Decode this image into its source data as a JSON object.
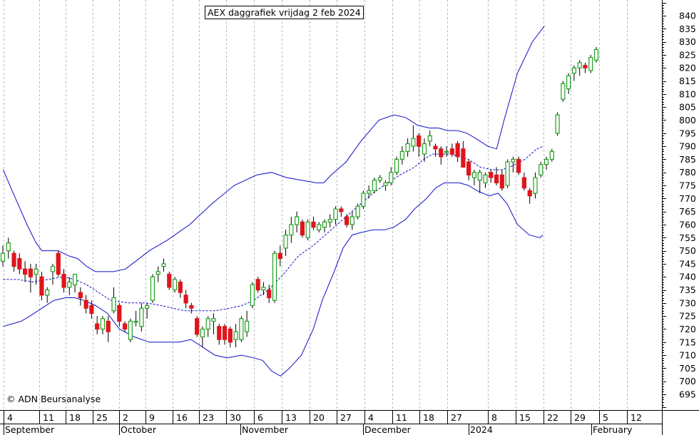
{
  "title": "AEX daggrafiek vrijdag 2 feb 2024",
  "copyright": "© ADN Beursanalyse",
  "colors": {
    "candle_up": "#22a022",
    "candle_down": "#e0151c",
    "bands": "#1010c8",
    "grid": "#b8b8b8",
    "axis": "#000000"
  },
  "chart_data": {
    "type": "candlestick",
    "title": "AEX daggrafiek vrijdag 2 feb 2024",
    "ylim": [
      690,
      845
    ],
    "y_ticks": [
      695,
      700,
      705,
      710,
      715,
      720,
      725,
      730,
      735,
      740,
      745,
      750,
      755,
      760,
      765,
      770,
      775,
      780,
      785,
      790,
      795,
      800,
      805,
      810,
      815,
      820,
      825,
      830,
      835,
      840
    ],
    "x_day_labels": [
      "4",
      "11",
      "18",
      "25",
      "2",
      "9",
      "16",
      "23",
      "30",
      "6",
      "13",
      "20",
      "27",
      "4",
      "11",
      "18",
      "27",
      "8",
      "15",
      "22",
      "29",
      "5",
      "12"
    ],
    "x_month_labels": [
      "September",
      "October",
      "November",
      "December",
      "2024",
      "February"
    ],
    "grid": "vertical-dashed",
    "candles": [
      {
        "o": 746,
        "h": 752,
        "l": 744,
        "c": 749
      },
      {
        "o": 750,
        "h": 755,
        "l": 747,
        "c": 753
      },
      {
        "o": 749,
        "h": 750,
        "l": 742,
        "c": 744
      },
      {
        "o": 747,
        "h": 749,
        "l": 741,
        "c": 743
      },
      {
        "o": 743,
        "h": 746,
        "l": 738,
        "c": 741
      },
      {
        "o": 743,
        "h": 745,
        "l": 734,
        "c": 740
      },
      {
        "o": 741,
        "h": 745,
        "l": 737,
        "c": 743
      },
      {
        "o": 740,
        "h": 742,
        "l": 731,
        "c": 733
      },
      {
        "o": 733,
        "h": 736,
        "l": 730,
        "c": 735
      },
      {
        "o": 742,
        "h": 745,
        "l": 737,
        "c": 744
      },
      {
        "o": 749,
        "h": 750,
        "l": 740,
        "c": 741
      },
      {
        "o": 741,
        "h": 743,
        "l": 734,
        "c": 736
      },
      {
        "o": 736,
        "h": 740,
        "l": 733,
        "c": 738
      },
      {
        "o": 737,
        "h": 741,
        "l": 734,
        "c": 741
      },
      {
        "o": 734,
        "h": 736,
        "l": 729,
        "c": 732
      },
      {
        "o": 731,
        "h": 733,
        "l": 726,
        "c": 728
      },
      {
        "o": 729,
        "h": 731,
        "l": 724,
        "c": 726
      },
      {
        "o": 722,
        "h": 725,
        "l": 718,
        "c": 720
      },
      {
        "o": 720,
        "h": 725,
        "l": 718,
        "c": 724
      },
      {
        "o": 723,
        "h": 725,
        "l": 715,
        "c": 719
      },
      {
        "o": 727,
        "h": 736,
        "l": 726,
        "c": 732
      },
      {
        "o": 729,
        "h": 730,
        "l": 721,
        "c": 723
      },
      {
        "o": 722,
        "h": 723,
        "l": 719,
        "c": 720
      },
      {
        "o": 716,
        "h": 724,
        "l": 715,
        "c": 723
      },
      {
        "o": 723,
        "h": 727,
        "l": 721,
        "c": 723
      },
      {
        "o": 721,
        "h": 730,
        "l": 719,
        "c": 728
      },
      {
        "o": 728,
        "h": 730,
        "l": 724,
        "c": 729
      },
      {
        "o": 731,
        "h": 741,
        "l": 730,
        "c": 740
      },
      {
        "o": 741,
        "h": 744,
        "l": 738,
        "c": 742
      },
      {
        "o": 744,
        "h": 747,
        "l": 742,
        "c": 745
      },
      {
        "o": 741,
        "h": 742,
        "l": 735,
        "c": 736
      },
      {
        "o": 735,
        "h": 740,
        "l": 734,
        "c": 739
      },
      {
        "o": 738,
        "h": 739,
        "l": 732,
        "c": 734
      },
      {
        "o": 733,
        "h": 735,
        "l": 728,
        "c": 730
      },
      {
        "o": 729,
        "h": 730,
        "l": 726,
        "c": 728
      },
      {
        "o": 724,
        "h": 725,
        "l": 717,
        "c": 718
      },
      {
        "o": 717,
        "h": 721,
        "l": 713,
        "c": 720
      },
      {
        "o": 720,
        "h": 725,
        "l": 717,
        "c": 724
      },
      {
        "o": 723,
        "h": 726,
        "l": 718,
        "c": 724
      },
      {
        "o": 721,
        "h": 722,
        "l": 714,
        "c": 716
      },
      {
        "o": 721,
        "h": 722,
        "l": 714,
        "c": 716
      },
      {
        "o": 720,
        "h": 721,
        "l": 713,
        "c": 715
      },
      {
        "o": 716,
        "h": 722,
        "l": 713,
        "c": 719
      },
      {
        "o": 716,
        "h": 725,
        "l": 715,
        "c": 724
      },
      {
        "o": 719,
        "h": 727,
        "l": 717,
        "c": 723
      },
      {
        "o": 729,
        "h": 738,
        "l": 728,
        "c": 737
      },
      {
        "o": 739,
        "h": 740,
        "l": 734,
        "c": 735
      },
      {
        "o": 735,
        "h": 738,
        "l": 733,
        "c": 736
      },
      {
        "o": 735,
        "h": 737,
        "l": 730,
        "c": 732
      },
      {
        "o": 731,
        "h": 750,
        "l": 730,
        "c": 749
      },
      {
        "o": 749,
        "h": 752,
        "l": 744,
        "c": 747
      },
      {
        "o": 751,
        "h": 758,
        "l": 748,
        "c": 756
      },
      {
        "o": 756,
        "h": 763,
        "l": 753,
        "c": 760
      },
      {
        "o": 760,
        "h": 765,
        "l": 757,
        "c": 763
      },
      {
        "o": 761,
        "h": 762,
        "l": 755,
        "c": 756
      },
      {
        "o": 755,
        "h": 762,
        "l": 754,
        "c": 761
      },
      {
        "o": 761,
        "h": 763,
        "l": 758,
        "c": 759
      },
      {
        "o": 758,
        "h": 761,
        "l": 757,
        "c": 760
      },
      {
        "o": 759,
        "h": 762,
        "l": 757,
        "c": 761
      },
      {
        "o": 761,
        "h": 764,
        "l": 759,
        "c": 762
      },
      {
        "o": 762,
        "h": 767,
        "l": 760,
        "c": 766
      },
      {
        "o": 766,
        "h": 767,
        "l": 763,
        "c": 765
      },
      {
        "o": 763,
        "h": 764,
        "l": 759,
        "c": 760
      },
      {
        "o": 760,
        "h": 765,
        "l": 758,
        "c": 763
      },
      {
        "o": 763,
        "h": 768,
        "l": 762,
        "c": 767
      },
      {
        "o": 767,
        "h": 773,
        "l": 766,
        "c": 772
      },
      {
        "o": 772,
        "h": 775,
        "l": 770,
        "c": 773
      },
      {
        "o": 773,
        "h": 778,
        "l": 772,
        "c": 777
      },
      {
        "o": 777,
        "h": 779,
        "l": 776,
        "c": 778
      },
      {
        "o": 775,
        "h": 777,
        "l": 773,
        "c": 776
      },
      {
        "o": 776,
        "h": 782,
        "l": 775,
        "c": 780
      },
      {
        "o": 780,
        "h": 786,
        "l": 779,
        "c": 785
      },
      {
        "o": 785,
        "h": 790,
        "l": 783,
        "c": 788
      },
      {
        "o": 788,
        "h": 793,
        "l": 786,
        "c": 791
      },
      {
        "o": 790,
        "h": 798,
        "l": 788,
        "c": 793
      },
      {
        "o": 794,
        "h": 795,
        "l": 786,
        "c": 790
      },
      {
        "o": 787,
        "h": 793,
        "l": 784,
        "c": 791
      },
      {
        "o": 792,
        "h": 796,
        "l": 790,
        "c": 794
      },
      {
        "o": 790,
        "h": 791,
        "l": 786,
        "c": 789
      },
      {
        "o": 789,
        "h": 790,
        "l": 783,
        "c": 786
      },
      {
        "o": 788,
        "h": 790,
        "l": 786,
        "c": 788
      },
      {
        "o": 789,
        "h": 791,
        "l": 786,
        "c": 787
      },
      {
        "o": 791,
        "h": 792,
        "l": 784,
        "c": 786
      },
      {
        "o": 789,
        "h": 792,
        "l": 783,
        "c": 782
      },
      {
        "o": 784,
        "h": 785,
        "l": 777,
        "c": 779
      },
      {
        "o": 778,
        "h": 781,
        "l": 775,
        "c": 780
      },
      {
        "o": 777,
        "h": 781,
        "l": 772,
        "c": 780
      },
      {
        "o": 776,
        "h": 780,
        "l": 774,
        "c": 779
      },
      {
        "o": 780,
        "h": 781,
        "l": 776,
        "c": 778
      },
      {
        "o": 779,
        "h": 782,
        "l": 775,
        "c": 776
      },
      {
        "o": 779,
        "h": 781,
        "l": 773,
        "c": 774
      },
      {
        "o": 775,
        "h": 785,
        "l": 774,
        "c": 784
      },
      {
        "o": 784,
        "h": 786,
        "l": 780,
        "c": 785
      },
      {
        "o": 785,
        "h": 786,
        "l": 779,
        "c": 780
      },
      {
        "o": 778,
        "h": 780,
        "l": 773,
        "c": 774
      },
      {
        "o": 773,
        "h": 774,
        "l": 768,
        "c": 771
      },
      {
        "o": 772,
        "h": 780,
        "l": 770,
        "c": 778
      },
      {
        "o": 779,
        "h": 784,
        "l": 778,
        "c": 783
      },
      {
        "o": 783,
        "h": 786,
        "l": 781,
        "c": 785
      },
      {
        "o": 785,
        "h": 789,
        "l": 784,
        "c": 788
      },
      {
        "o": 795,
        "h": 803,
        "l": 794,
        "c": 802
      },
      {
        "o": 808,
        "h": 815,
        "l": 807,
        "c": 814
      },
      {
        "o": 812,
        "h": 818,
        "l": 810,
        "c": 817
      },
      {
        "o": 818,
        "h": 821,
        "l": 815,
        "c": 820
      },
      {
        "o": 820,
        "h": 823,
        "l": 817,
        "c": 822
      },
      {
        "o": 821,
        "h": 822,
        "l": 818,
        "c": 820
      },
      {
        "o": 819,
        "h": 825,
        "l": 818,
        "c": 824
      },
      {
        "o": 823,
        "h": 828,
        "l": 822,
        "c": 827
      }
    ],
    "bollinger_upper": [
      [
        0,
        781
      ],
      [
        6,
        773
      ],
      [
        16,
        760
      ],
      [
        22,
        753
      ],
      [
        26,
        750
      ],
      [
        37,
        750
      ],
      [
        44,
        748
      ],
      [
        50,
        747
      ],
      [
        56,
        744
      ],
      [
        62,
        742
      ],
      [
        74,
        742
      ],
      [
        82,
        743
      ],
      [
        89,
        746
      ],
      [
        98,
        750
      ],
      [
        110,
        754
      ],
      [
        125,
        760
      ],
      [
        140,
        768
      ],
      [
        155,
        775
      ],
      [
        170,
        779
      ],
      [
        180,
        780
      ],
      [
        190,
        778
      ],
      [
        200,
        777
      ],
      [
        210,
        776
      ],
      [
        215,
        776
      ],
      [
        220,
        779
      ],
      [
        230,
        784
      ],
      [
        240,
        792
      ],
      [
        252,
        800
      ],
      [
        262,
        802
      ],
      [
        270,
        801
      ],
      [
        278,
        798
      ],
      [
        286,
        797
      ],
      [
        292,
        797
      ],
      [
        298,
        796
      ],
      [
        305,
        796
      ],
      [
        311,
        795
      ],
      [
        317,
        793
      ],
      [
        325,
        790
      ],
      [
        331,
        789
      ],
      [
        336,
        800
      ],
      [
        345,
        818
      ],
      [
        355,
        830
      ],
      [
        363,
        836
      ]
    ],
    "bollinger_middle": [
      [
        0,
        739
      ],
      [
        10,
        739
      ],
      [
        20,
        738
      ],
      [
        30,
        739
      ],
      [
        40,
        740
      ],
      [
        48,
        739
      ],
      [
        56,
        737
      ],
      [
        64,
        734
      ],
      [
        72,
        731
      ],
      [
        84,
        730
      ],
      [
        96,
        730
      ],
      [
        106,
        729
      ],
      [
        114,
        728
      ],
      [
        122,
        727
      ],
      [
        132,
        727
      ],
      [
        142,
        727
      ],
      [
        152,
        728
      ],
      [
        160,
        729
      ],
      [
        168,
        731
      ],
      [
        178,
        735
      ],
      [
        188,
        741
      ],
      [
        198,
        748
      ],
      [
        208,
        752
      ],
      [
        218,
        757
      ],
      [
        228,
        762
      ],
      [
        238,
        767
      ],
      [
        248,
        772
      ],
      [
        258,
        776
      ],
      [
        266,
        779
      ],
      [
        276,
        782
      ],
      [
        282,
        785
      ],
      [
        288,
        787
      ],
      [
        295,
        787
      ],
      [
        300,
        787
      ],
      [
        306,
        786
      ],
      [
        312,
        785
      ],
      [
        320,
        782
      ],
      [
        328,
        781
      ],
      [
        334,
        781
      ],
      [
        340,
        782
      ],
      [
        350,
        785
      ],
      [
        358,
        789
      ],
      [
        362,
        790
      ]
    ],
    "bollinger_lower": [
      [
        0,
        721
      ],
      [
        6,
        722
      ],
      [
        12,
        723
      ],
      [
        18,
        725
      ],
      [
        26,
        728
      ],
      [
        34,
        731
      ],
      [
        42,
        732
      ],
      [
        48,
        732
      ],
      [
        54,
        731
      ],
      [
        62,
        729
      ],
      [
        70,
        726
      ],
      [
        78,
        720
      ],
      [
        88,
        717
      ],
      [
        98,
        715
      ],
      [
        108,
        715
      ],
      [
        118,
        715
      ],
      [
        126,
        716
      ],
      [
        134,
        713
      ],
      [
        142,
        710
      ],
      [
        150,
        709
      ],
      [
        160,
        710
      ],
      [
        168,
        709
      ],
      [
        174,
        708
      ],
      [
        180,
        704
      ],
      [
        186,
        702
      ],
      [
        192,
        705
      ],
      [
        200,
        710
      ],
      [
        208,
        720
      ],
      [
        214,
        731
      ],
      [
        222,
        742
      ],
      [
        228,
        751
      ],
      [
        234,
        756
      ],
      [
        240,
        757
      ],
      [
        248,
        758
      ],
      [
        256,
        758
      ],
      [
        262,
        759
      ],
      [
        270,
        762
      ],
      [
        276,
        766
      ],
      [
        284,
        770
      ],
      [
        290,
        774
      ],
      [
        296,
        776
      ],
      [
        306,
        776
      ],
      [
        312,
        775
      ],
      [
        318,
        773
      ],
      [
        326,
        771
      ],
      [
        332,
        772
      ],
      [
        338,
        768
      ],
      [
        345,
        760
      ],
      [
        353,
        756
      ],
      [
        360,
        755
      ],
      [
        362,
        756
      ]
    ]
  }
}
